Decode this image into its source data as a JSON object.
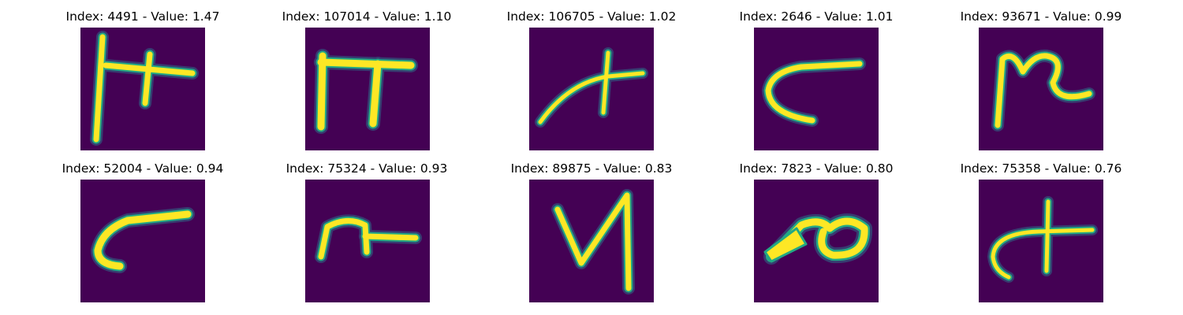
{
  "colors": {
    "background": "#440154",
    "stroke": "#fde725",
    "edge": "#22a884",
    "glow": "#2a788e"
  },
  "panels": [
    {
      "title": "Index: 4491 - Value: 1.47",
      "glyph": "h-vertical-cross-stroke"
    },
    {
      "title": "Index: 107014 - Value: 1.10",
      "glyph": "pi-shape"
    },
    {
      "title": "Index: 106705 - Value: 1.02",
      "glyph": "curve-with-cross"
    },
    {
      "title": "Index: 2646 - Value: 1.01",
      "glyph": "c-hook"
    },
    {
      "title": "Index: 93671 - Value: 0.99",
      "glyph": "n-wave"
    },
    {
      "title": "Index: 52004 - Value: 0.94",
      "glyph": "c-hook-wide"
    },
    {
      "title": "Index: 75324 - Value: 0.93",
      "glyph": "n-tail"
    },
    {
      "title": "Index: 89875 - Value: 0.83",
      "glyph": "v-tall"
    },
    {
      "title": "Index: 7823 - Value: 0.80",
      "glyph": "loop-blob"
    },
    {
      "title": "Index: 75358 - Value: 0.76",
      "glyph": "curve-cross-hook"
    }
  ]
}
